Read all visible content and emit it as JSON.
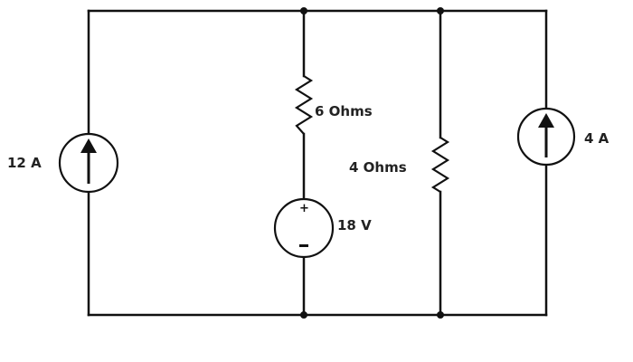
{
  "components": {
    "current_source_left": {
      "label": "12 A"
    },
    "resistor_top": {
      "label": "6 Ohms"
    },
    "voltage_source": {
      "label": "18 V",
      "plus": "+",
      "minus": "-"
    },
    "resistor_right": {
      "label": "4 Ohms"
    },
    "current_source_right": {
      "label": "4 A"
    }
  },
  "colors": {
    "wire": "#111111",
    "label": "#222222",
    "background": "#ffffff"
  }
}
